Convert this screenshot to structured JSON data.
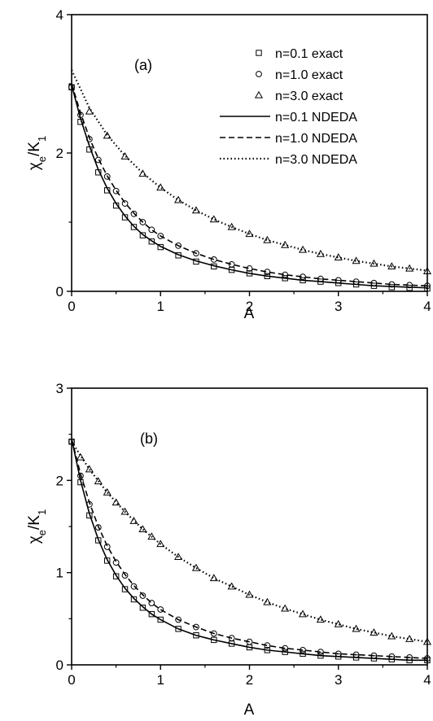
{
  "chart_data": [
    {
      "type": "line",
      "panel_label": "(a)",
      "xlabel": "A",
      "ylabel": "χe/K1",
      "ylabel_main": "χ",
      "ylabel_sub1": "e",
      "ylabel_slash": "/K",
      "ylabel_sub2": "1",
      "xlim": [
        0,
        4
      ],
      "ylim": [
        0,
        4
      ],
      "xticks": [
        "0",
        "1",
        "2",
        "3",
        "4"
      ],
      "yticks": [
        "0",
        "2",
        "4"
      ],
      "legend_position": "top-right",
      "series": [
        {
          "name": "n=0.1 exact",
          "marker": "square",
          "x": [
            0,
            0.1,
            0.2,
            0.3,
            0.4,
            0.5,
            0.6,
            0.7,
            0.8,
            0.9,
            1.0,
            1.2,
            1.4,
            1.6,
            1.8,
            2.0,
            2.2,
            2.4,
            2.6,
            2.8,
            3.0,
            3.2,
            3.4,
            3.6,
            3.8,
            4.0
          ],
          "y": [
            2.95,
            2.45,
            2.05,
            1.72,
            1.46,
            1.24,
            1.07,
            0.93,
            0.81,
            0.72,
            0.64,
            0.52,
            0.43,
            0.36,
            0.31,
            0.26,
            0.22,
            0.19,
            0.16,
            0.14,
            0.12,
            0.1,
            0.08,
            0.06,
            0.05,
            0.04
          ]
        },
        {
          "name": "n=1.0 exact",
          "marker": "circle",
          "x": [
            0,
            0.1,
            0.2,
            0.3,
            0.4,
            0.5,
            0.6,
            0.7,
            0.8,
            0.9,
            1.0,
            1.2,
            1.4,
            1.6,
            1.8,
            2.0,
            2.2,
            2.4,
            2.6,
            2.8,
            3.0,
            3.2,
            3.4,
            3.6,
            3.8,
            4.0
          ],
          "y": [
            2.95,
            2.55,
            2.2,
            1.9,
            1.66,
            1.45,
            1.27,
            1.12,
            1.0,
            0.89,
            0.8,
            0.66,
            0.55,
            0.46,
            0.39,
            0.33,
            0.28,
            0.24,
            0.21,
            0.18,
            0.16,
            0.14,
            0.12,
            0.1,
            0.09,
            0.08
          ]
        },
        {
          "name": "n=3.0 exact",
          "marker": "triangle",
          "x": [
            0.2,
            0.4,
            0.6,
            0.8,
            1.0,
            1.2,
            1.4,
            1.6,
            1.8,
            2.0,
            2.2,
            2.4,
            2.6,
            2.8,
            3.0,
            3.2,
            3.4,
            3.6,
            3.8,
            4.0
          ],
          "y": [
            2.6,
            2.25,
            1.95,
            1.7,
            1.5,
            1.32,
            1.17,
            1.04,
            0.93,
            0.83,
            0.74,
            0.67,
            0.6,
            0.54,
            0.49,
            0.44,
            0.4,
            0.36,
            0.33,
            0.29
          ]
        },
        {
          "name": "n=0.1 NDEDA",
          "line": "solid",
          "x": [
            0,
            0.1,
            0.2,
            0.3,
            0.4,
            0.5,
            0.6,
            0.7,
            0.8,
            0.9,
            1.0,
            1.2,
            1.4,
            1.6,
            1.8,
            2.0,
            2.2,
            2.4,
            2.6,
            2.8,
            3.0,
            3.2,
            3.4,
            3.6,
            3.8,
            4.0
          ],
          "y": [
            2.98,
            2.5,
            2.1,
            1.76,
            1.49,
            1.27,
            1.09,
            0.94,
            0.82,
            0.73,
            0.65,
            0.53,
            0.44,
            0.37,
            0.31,
            0.26,
            0.22,
            0.19,
            0.16,
            0.14,
            0.12,
            0.1,
            0.08,
            0.07,
            0.06,
            0.05
          ]
        },
        {
          "name": "n=1.0 NDEDA",
          "line": "dashed",
          "x": [
            0,
            0.1,
            0.2,
            0.3,
            0.4,
            0.5,
            0.6,
            0.7,
            0.8,
            0.9,
            1.0,
            1.2,
            1.4,
            1.6,
            1.8,
            2.0,
            2.2,
            2.4,
            2.6,
            2.8,
            3.0,
            3.2,
            3.4,
            3.6,
            3.8,
            4.0
          ],
          "y": [
            3.0,
            2.58,
            2.22,
            1.92,
            1.67,
            1.46,
            1.28,
            1.13,
            1.0,
            0.89,
            0.8,
            0.66,
            0.55,
            0.46,
            0.39,
            0.33,
            0.28,
            0.24,
            0.21,
            0.18,
            0.16,
            0.14,
            0.12,
            0.1,
            0.09,
            0.08
          ]
        },
        {
          "name": "n=3.0 NDEDA",
          "line": "dotted",
          "x": [
            0,
            0.2,
            0.4,
            0.6,
            0.8,
            1.0,
            1.2,
            1.4,
            1.6,
            1.8,
            2.0,
            2.2,
            2.4,
            2.6,
            2.8,
            3.0,
            3.2,
            3.4,
            3.6,
            3.8,
            4.0
          ],
          "y": [
            3.2,
            2.65,
            2.26,
            1.96,
            1.71,
            1.5,
            1.32,
            1.17,
            1.04,
            0.93,
            0.83,
            0.74,
            0.67,
            0.6,
            0.54,
            0.49,
            0.44,
            0.4,
            0.36,
            0.33,
            0.3
          ]
        }
      ]
    },
    {
      "type": "line",
      "panel_label": "(b)",
      "xlabel": "A",
      "ylabel": "χe/K1",
      "ylabel_main": "χ",
      "ylabel_sub1": "e",
      "ylabel_slash": "/K",
      "ylabel_sub2": "1",
      "xlim": [
        0,
        4
      ],
      "ylim": [
        0,
        3
      ],
      "xticks": [
        "0",
        "1",
        "2",
        "3",
        "4"
      ],
      "yticks": [
        "0",
        "1",
        "2",
        "3"
      ],
      "series": [
        {
          "name": "n=0.1 exact",
          "marker": "square",
          "x": [
            0,
            0.1,
            0.2,
            0.3,
            0.4,
            0.5,
            0.6,
            0.7,
            0.8,
            0.9,
            1.0,
            1.2,
            1.4,
            1.6,
            1.8,
            2.0,
            2.2,
            2.4,
            2.6,
            2.8,
            3.0,
            3.2,
            3.4,
            3.6,
            3.8,
            4.0
          ],
          "y": [
            2.42,
            1.98,
            1.62,
            1.35,
            1.13,
            0.96,
            0.82,
            0.71,
            0.62,
            0.55,
            0.49,
            0.39,
            0.32,
            0.27,
            0.23,
            0.19,
            0.16,
            0.14,
            0.12,
            0.1,
            0.09,
            0.08,
            0.07,
            0.06,
            0.05,
            0.05
          ]
        },
        {
          "name": "n=1.0 exact",
          "marker": "circle",
          "x": [
            0,
            0.1,
            0.2,
            0.3,
            0.4,
            0.5,
            0.6,
            0.7,
            0.8,
            0.9,
            1.0,
            1.2,
            1.4,
            1.6,
            1.8,
            2.0,
            2.2,
            2.4,
            2.6,
            2.8,
            3.0,
            3.2,
            3.4,
            3.6,
            3.8,
            4.0
          ],
          "y": [
            2.42,
            2.05,
            1.74,
            1.49,
            1.28,
            1.11,
            0.97,
            0.85,
            0.75,
            0.67,
            0.6,
            0.49,
            0.41,
            0.34,
            0.29,
            0.25,
            0.21,
            0.18,
            0.16,
            0.14,
            0.12,
            0.11,
            0.1,
            0.09,
            0.08,
            0.07
          ]
        },
        {
          "name": "n=3.0 exact",
          "marker": "triangle",
          "x": [
            0.1,
            0.2,
            0.3,
            0.4,
            0.5,
            0.6,
            0.7,
            0.8,
            0.9,
            1.0,
            1.2,
            1.4,
            1.6,
            1.8,
            2.0,
            2.2,
            2.4,
            2.6,
            2.8,
            3.0,
            3.2,
            3.4,
            3.6,
            3.8,
            4.0
          ],
          "y": [
            2.25,
            2.12,
            1.99,
            1.87,
            1.76,
            1.66,
            1.56,
            1.47,
            1.39,
            1.31,
            1.17,
            1.05,
            0.94,
            0.85,
            0.76,
            0.68,
            0.61,
            0.55,
            0.49,
            0.44,
            0.39,
            0.35,
            0.31,
            0.28,
            0.25
          ]
        },
        {
          "name": "n=0.1 NDEDA",
          "line": "solid",
          "x": [
            0,
            0.1,
            0.2,
            0.3,
            0.4,
            0.5,
            0.6,
            0.7,
            0.8,
            0.9,
            1.0,
            1.2,
            1.4,
            1.6,
            1.8,
            2.0,
            2.2,
            2.4,
            2.6,
            2.8,
            3.0,
            3.2,
            3.4,
            3.6,
            3.8,
            4.0
          ],
          "y": [
            2.45,
            2.0,
            1.64,
            1.36,
            1.14,
            0.97,
            0.83,
            0.72,
            0.63,
            0.55,
            0.49,
            0.39,
            0.32,
            0.27,
            0.23,
            0.19,
            0.16,
            0.14,
            0.12,
            0.1,
            0.09,
            0.08,
            0.07,
            0.06,
            0.05,
            0.05
          ]
        },
        {
          "name": "n=1.0 NDEDA",
          "line": "dashed",
          "x": [
            0,
            0.1,
            0.2,
            0.3,
            0.4,
            0.5,
            0.6,
            0.7,
            0.8,
            0.9,
            1.0,
            1.2,
            1.4,
            1.6,
            1.8,
            2.0,
            2.2,
            2.4,
            2.6,
            2.8,
            3.0,
            3.2,
            3.4,
            3.6,
            3.8,
            4.0
          ],
          "y": [
            2.45,
            2.07,
            1.76,
            1.5,
            1.29,
            1.12,
            0.98,
            0.86,
            0.76,
            0.67,
            0.6,
            0.49,
            0.41,
            0.34,
            0.29,
            0.25,
            0.21,
            0.18,
            0.16,
            0.14,
            0.12,
            0.11,
            0.1,
            0.09,
            0.08,
            0.07
          ]
        },
        {
          "name": "n=3.0 NDEDA",
          "line": "dotted",
          "x": [
            0,
            0.2,
            0.4,
            0.6,
            0.8,
            1.0,
            1.2,
            1.4,
            1.6,
            1.8,
            2.0,
            2.2,
            2.4,
            2.6,
            2.8,
            3.0,
            3.2,
            3.4,
            3.6,
            3.8,
            4.0
          ],
          "y": [
            2.42,
            2.12,
            1.87,
            1.66,
            1.47,
            1.31,
            1.17,
            1.05,
            0.94,
            0.85,
            0.76,
            0.68,
            0.61,
            0.55,
            0.49,
            0.44,
            0.39,
            0.35,
            0.31,
            0.28,
            0.25
          ]
        }
      ]
    }
  ]
}
